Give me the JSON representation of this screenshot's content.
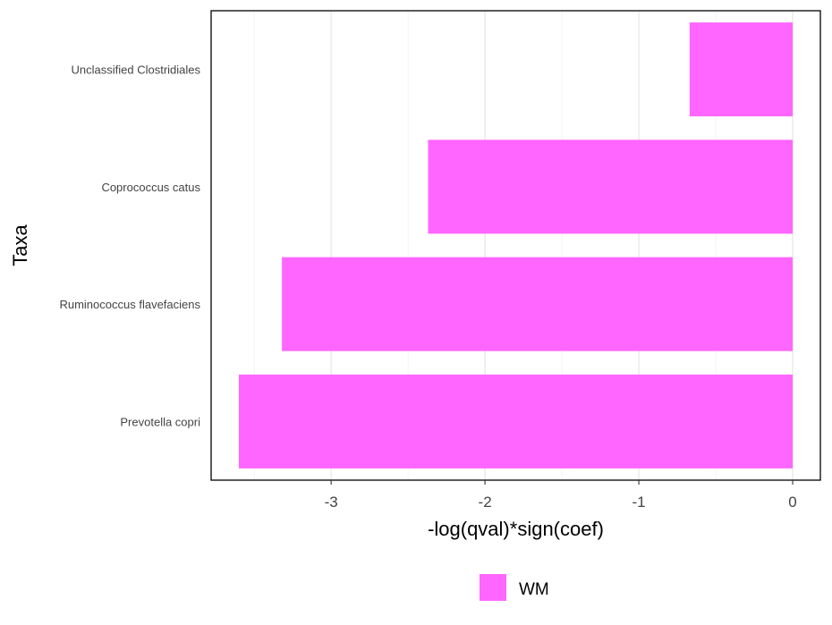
{
  "chart_data": {
    "type": "bar",
    "orientation": "horizontal",
    "categories": [
      "Unclassified Clostridiales",
      "Coprococcus catus",
      "Ruminococcus flavefaciens",
      "Prevotella copri"
    ],
    "series": [
      {
        "name": "WM",
        "values": [
          -0.67,
          -2.37,
          -3.32,
          -3.6
        ],
        "color": "#ff66ff"
      }
    ],
    "xlabel": "-log(qval)*sign(coef)",
    "ylabel": "Taxa",
    "xlim": [
      -3.78,
      0.18
    ],
    "xticks": [
      -3,
      -2,
      -1,
      0
    ],
    "xtick_labels": [
      "-3",
      "-2",
      "-1",
      "0"
    ],
    "grid": true,
    "legend": {
      "position": "bottom",
      "entries": [
        "WM"
      ]
    }
  }
}
